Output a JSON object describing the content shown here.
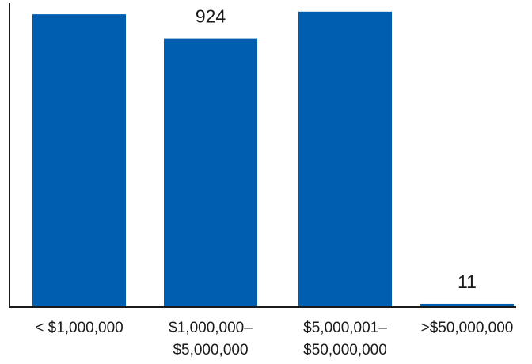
{
  "chart_data": {
    "type": "bar",
    "categories": [
      [
        "< $1,000,000"
      ],
      [
        "$1,000,000–",
        "$5,000,000"
      ],
      [
        "$5,000,001–",
        "$50,000,000"
      ],
      [
        ">$50,000,000"
      ]
    ],
    "values": [
      1007,
      924,
      1016,
      11
    ],
    "title": "",
    "xlabel": "",
    "ylabel": "",
    "ylim": [
      0,
      1040
    ],
    "grid": false,
    "legend": "none",
    "bar_color": "#005eb0",
    "axis_color": "#1a1a1a"
  }
}
